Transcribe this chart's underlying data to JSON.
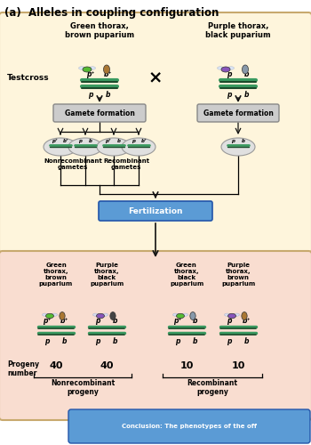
{
  "title": "(a)  Alleles in coupling configuration",
  "top_bg": "#FEF5DC",
  "bottom_bg": "#F9DDD0",
  "conclusion_bg": "#5B9BD5",
  "left_parent_label": "Green thorax,\nbrown puparium",
  "right_parent_label": "Purple thorax,\nblack puparium",
  "testcross_label": "Testcross",
  "gamete_label": "Gamete formation",
  "fertilization_label": "Fertilization",
  "fertilization_bg": "#5B9BD5",
  "nonrecomb_gamete_label": "Nonrecombinant\ngametes",
  "recomb_gamete_label": "Recombinant\ngametes",
  "chr_green": "#3A9A60",
  "chr_dark": "#1A4A2A",
  "progeny_labels": [
    "Green\nthorax,\nbrown\npuparium",
    "Purple\nthorax,\nblack\npuparium",
    "Green\nthorax,\nblack\npuparium",
    "Purple\nthorax,\nbrown\npuparium"
  ],
  "progeny_numbers": [
    "40",
    "40",
    "10",
    "10"
  ],
  "nonrecomb_progeny_label": "Nonrecombinant\nprogeny",
  "recomb_progeny_label": "Recombinant\nprogeny",
  "progeny_number_label": "Progeny\nnumber",
  "arrow_color": "#111111",
  "oval_fc": "#E0E0E0",
  "oval_ec": "#999999",
  "border_color": "#C8A96E",
  "fly_green": "#55BB33",
  "fly_purple": "#8855BB",
  "seed_brown": "#AA7733",
  "seed_black": "#444444",
  "seed_grey": "#8899AA"
}
